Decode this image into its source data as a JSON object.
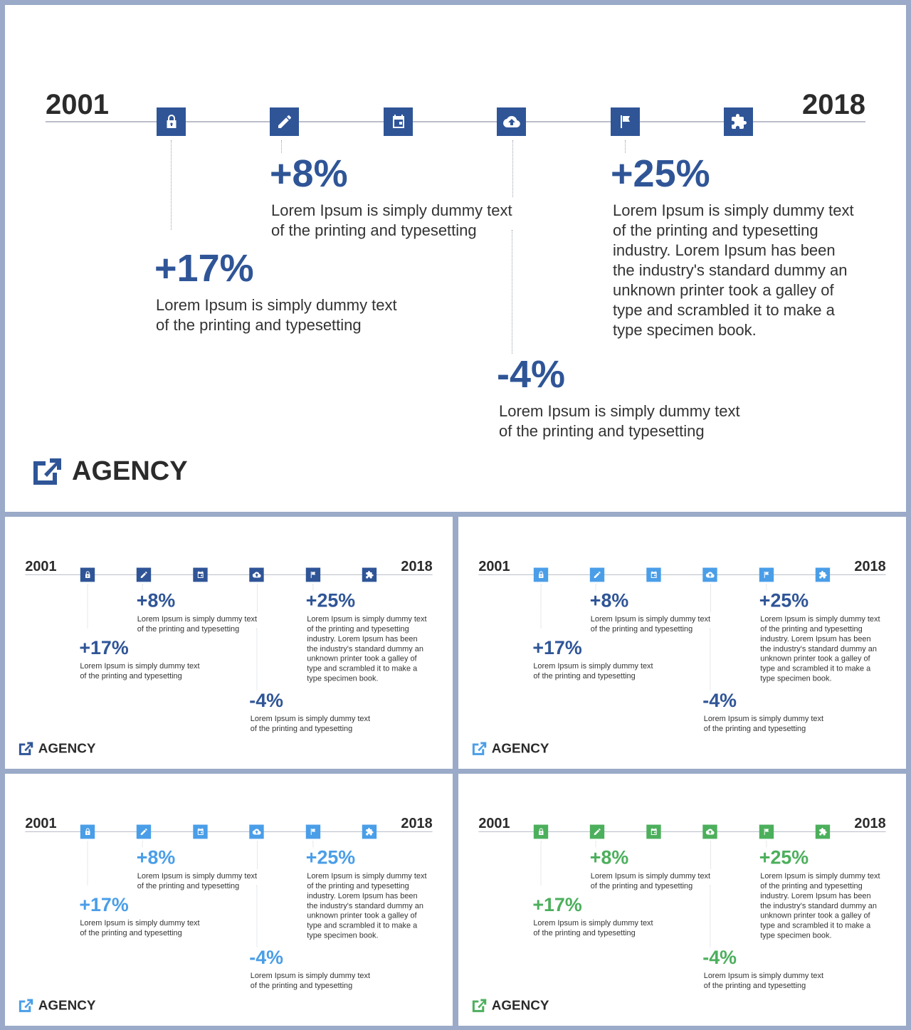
{
  "timeline": {
    "start_year": "2001",
    "end_year": "2018",
    "icons": [
      "lock-icon",
      "pencil-icon",
      "calendar-icon",
      "cloud-upload-icon",
      "flag-icon",
      "puzzle-icon"
    ]
  },
  "stats": [
    {
      "value": "+17%",
      "text_line1": "Lorem Ipsum is simply dummy text",
      "text_line2": "of the printing and typesetting"
    },
    {
      "value": "+8%",
      "text_line1": "Lorem Ipsum is simply dummy text",
      "text_line2": "of the printing and typesetting"
    },
    {
      "value": "-4%",
      "text_line1": "Lorem Ipsum is simply dummy text",
      "text_line2": "of the printing and typesetting"
    },
    {
      "value": "+25%",
      "lines": [
        "Lorem Ipsum is simply dummy text",
        "of the printing and typesetting",
        "industry. Lorem Ipsum has been",
        "the industry's standard dummy an",
        "unknown printer took a galley of",
        "type and scrambled it to make a",
        "type specimen book."
      ]
    }
  ],
  "brand": {
    "name": "AGENCY"
  },
  "themes": [
    {
      "accent": "#2f5597",
      "stat": "#2f5597"
    },
    {
      "accent": "#2f5597",
      "stat": "#2f5597"
    },
    {
      "accent": "#4a9ee8",
      "stat": "#2f5597"
    },
    {
      "accent": "#4a9ee8",
      "stat": "#4a9ee8"
    },
    {
      "accent": "#4caf5c",
      "stat": "#4caf5c"
    }
  ]
}
